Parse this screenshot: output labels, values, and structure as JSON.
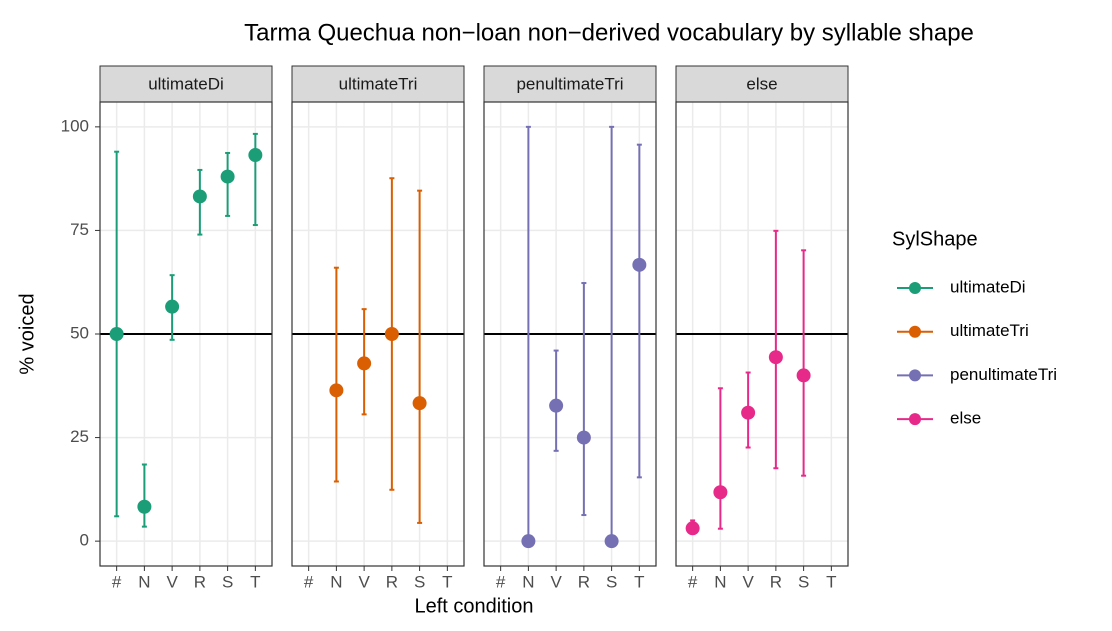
{
  "chart_data": {
    "type": "errorbar",
    "title": "Tarma Quechua non−loan non−derived vocabulary by syllable shape",
    "xlabel": "Left condition",
    "ylabel": "% voiced",
    "legend_title": "SylShape",
    "categories": [
      "#",
      "N",
      "V",
      "R",
      "S",
      "T"
    ],
    "ylim": [
      -6,
      106
    ],
    "yticks": [
      0,
      25,
      50,
      75,
      100
    ],
    "hline": 50,
    "grid": true,
    "series": [
      {
        "name": "ultimateDi",
        "color": "#1b9e77",
        "values": [
          50,
          8.3,
          56.6,
          83.2,
          88,
          93.2
        ],
        "lower": [
          6,
          3.5,
          48.6,
          74,
          78.5,
          76.3
        ],
        "upper": [
          94,
          18.5,
          64.2,
          89.6,
          93.7,
          98.3
        ]
      },
      {
        "name": "ultimateTri",
        "color": "#d95f02",
        "values": [
          null,
          36.4,
          42.9,
          50,
          33.3,
          null
        ],
        "lower": [
          null,
          14.4,
          30.6,
          12.4,
          4.4,
          null
        ],
        "upper": [
          null,
          66,
          56,
          87.6,
          84.6,
          null
        ]
      },
      {
        "name": "penultimateTri",
        "color": "#7570b3",
        "values": [
          null,
          0,
          32.7,
          25,
          0,
          66.7
        ],
        "lower": [
          null,
          0,
          21.8,
          6.3,
          0,
          15.4
        ],
        "upper": [
          null,
          100,
          46,
          62.3,
          100,
          95.7
        ]
      },
      {
        "name": "else",
        "color": "#e7298a",
        "values": [
          3.1,
          11.8,
          31,
          44.4,
          40,
          null
        ],
        "lower": [
          1.9,
          3,
          22.6,
          17.6,
          15.8,
          null
        ],
        "upper": [
          5,
          36.9,
          40.7,
          74.9,
          70.2,
          null
        ]
      }
    ]
  }
}
